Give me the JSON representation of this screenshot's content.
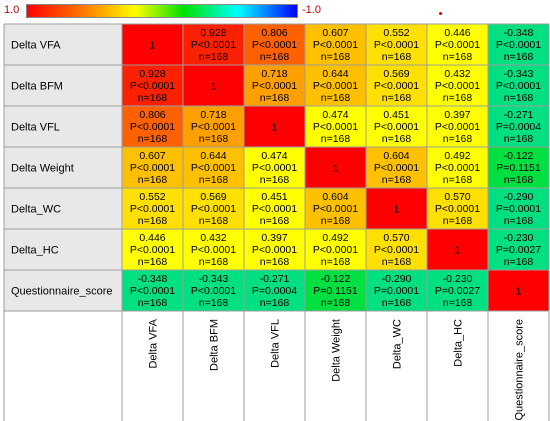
{
  "legend": {
    "min_label": "1.0",
    "max_label": "-1.0"
  },
  "colors": {
    "diag": "#ff0000",
    "c1": "#ff2000",
    "c2": "#ff6000",
    "c3": "#ffa000",
    "c4": "#ffc000",
    "c5": "#ffe000",
    "c6": "#ffff00",
    "c7": "#00e080",
    "c8": "#00e040",
    "header_bg": "#e8e8e8",
    "grid": "#9e9e9e"
  },
  "chart_data": {
    "type": "heatmap",
    "title": "",
    "rows": [
      "Delta VFA",
      "Delta BFM",
      "Delta VFL",
      "Delta Weight",
      "Delta_WC",
      "Delta_HC",
      "Questionnaire_score"
    ],
    "columns": [
      "Delta VFA",
      "Delta BFM",
      "Delta VFL",
      "Delta Weight",
      "Delta_WC",
      "Delta_HC",
      "Questionnaire_score"
    ],
    "diagonal_label": "1",
    "colorbar_range": [
      1.0,
      -1.0
    ],
    "cells": [
      [
        null,
        {
          "r": "0.928",
          "p": "P<0.0001",
          "n": "n=168"
        },
        {
          "r": "0.806",
          "p": "P<0.0001",
          "n": "n=168"
        },
        {
          "r": "0.607",
          "p": "P<0.0001",
          "n": "n=168"
        },
        {
          "r": "0.552",
          "p": "P<0.0001",
          "n": "n=168"
        },
        {
          "r": "0.446",
          "p": "P<0.0001",
          "n": "n=168"
        },
        {
          "r": "-0.348",
          "p": "P<0.0001",
          "n": "n=168"
        }
      ],
      [
        {
          "r": "0.928",
          "p": "P<0.0001",
          "n": "n=168"
        },
        null,
        {
          "r": "0.718",
          "p": "P<0.0001",
          "n": "n=168"
        },
        {
          "r": "0.644",
          "p": "P<0.0001",
          "n": "n=168"
        },
        {
          "r": "0.569",
          "p": "P<0.0001",
          "n": "n=168"
        },
        {
          "r": "0.432",
          "p": "P<0.0001",
          "n": "n=168"
        },
        {
          "r": "-0.343",
          "p": "P<0.0001",
          "n": "n=168"
        }
      ],
      [
        {
          "r": "0.806",
          "p": "P<0.0001",
          "n": "n=168"
        },
        {
          "r": "0.718",
          "p": "P<0.0001",
          "n": "n=168"
        },
        null,
        {
          "r": "0.474",
          "p": "P<0.0001",
          "n": "n=168"
        },
        {
          "r": "0.451",
          "p": "P<0.0001",
          "n": "n=168"
        },
        {
          "r": "0.397",
          "p": "P<0.0001",
          "n": "n=168"
        },
        {
          "r": "-0.271",
          "p": "P=0.0004",
          "n": "n=168"
        }
      ],
      [
        {
          "r": "0.607",
          "p": "P<0.0001",
          "n": "n=168"
        },
        {
          "r": "0.644",
          "p": "P<0.0001",
          "n": "n=168"
        },
        {
          "r": "0.474",
          "p": "P<0.0001",
          "n": "n=168"
        },
        null,
        {
          "r": "0.604",
          "p": "P<0.0001",
          "n": "n=168"
        },
        {
          "r": "0.492",
          "p": "P<0.0001",
          "n": "n=168"
        },
        {
          "r": "-0.122",
          "p": "P=0.1151",
          "n": "n=168"
        }
      ],
      [
        {
          "r": "0.552",
          "p": "P<0.0001",
          "n": "n=168"
        },
        {
          "r": "0.569",
          "p": "P<0.0001",
          "n": "n=168"
        },
        {
          "r": "0.451",
          "p": "P<0.0001",
          "n": "n=168"
        },
        {
          "r": "0.604",
          "p": "P<0.0001",
          "n": "n=168"
        },
        null,
        {
          "r": "0.570",
          "p": "P<0.0001",
          "n": "n=168"
        },
        {
          "r": "-0.290",
          "p": "P=0.0001",
          "n": "n=168"
        }
      ],
      [
        {
          "r": "0.446",
          "p": "P<0.0001",
          "n": "n=168"
        },
        {
          "r": "0.432",
          "p": "P<0.0001",
          "n": "n=168"
        },
        {
          "r": "0.397",
          "p": "P<0.0001",
          "n": "n=168"
        },
        {
          "r": "0.492",
          "p": "P<0.0001",
          "n": "n=168"
        },
        {
          "r": "0.570",
          "p": "P<0.0001",
          "n": "n=168"
        },
        null,
        {
          "r": "-0.230",
          "p": "P=0.0027",
          "n": "n=168"
        }
      ],
      [
        {
          "r": "-0.348",
          "p": "P<0.0001",
          "n": "n=168"
        },
        {
          "r": "-0.343",
          "p": "P<0.0001",
          "n": "n=168"
        },
        {
          "r": "-0.271",
          "p": "P=0.0004",
          "n": "n=168"
        },
        {
          "r": "-0.122",
          "p": "P=0.1151",
          "n": "n=168"
        },
        {
          "r": "-0.290",
          "p": "P=0.0001",
          "n": "n=168"
        },
        {
          "r": "-0.230",
          "p": "P=0.0027",
          "n": "n=168"
        },
        null
      ]
    ]
  }
}
